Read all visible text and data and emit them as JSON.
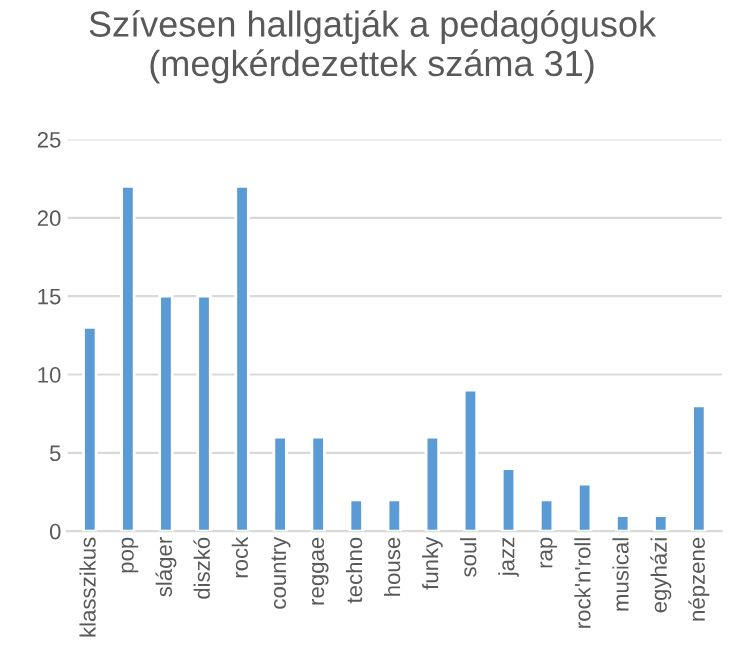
{
  "chart_data": {
    "type": "bar",
    "title": "Szívesen hallgatják a pedagógusok\n(megkérdezettek száma 31)",
    "categories": [
      "klasszikus",
      "pop",
      "sláger",
      "diszkó",
      "rock",
      "country",
      "reggae",
      "techno",
      "house",
      "funky",
      "soul",
      "jazz",
      "rap",
      "rock'n'roll",
      "musical",
      "egyházi",
      "népzene"
    ],
    "values": [
      13,
      22,
      15,
      15,
      22,
      6,
      6,
      2,
      2,
      6,
      9,
      4,
      2,
      3,
      1,
      1,
      8
    ],
    "color": "#5b9bd5",
    "ylim": [
      0,
      25
    ],
    "yticks": [
      0,
      5,
      10,
      15,
      20,
      25
    ],
    "grid": "y"
  }
}
